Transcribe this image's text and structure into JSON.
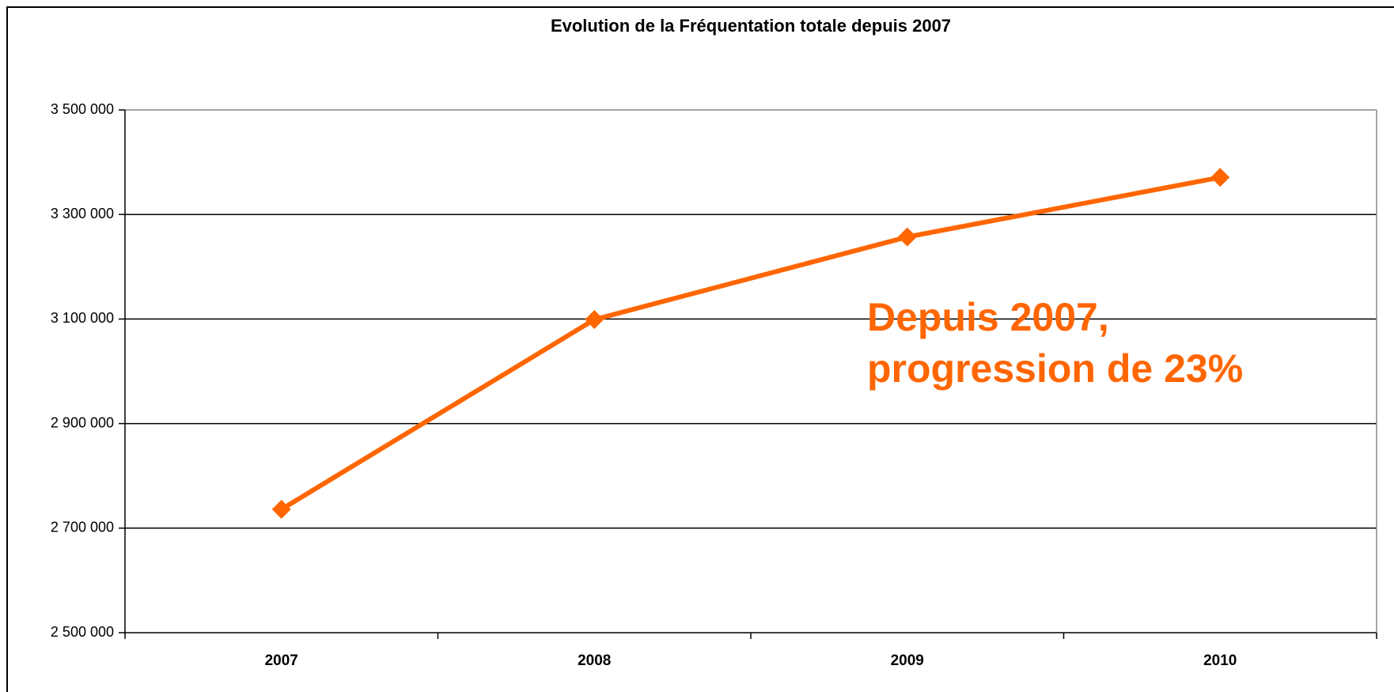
{
  "chart_data": {
    "type": "line",
    "title": "Evolution de la Fréquentation totale depuis 2007",
    "categories": [
      "2007",
      "2008",
      "2009",
      "2010"
    ],
    "series": [
      {
        "name": "Fréquentation totale",
        "color": "#ff6600",
        "values": [
          2736000,
          3099000,
          3257000,
          3371000
        ]
      }
    ],
    "ylim": [
      2500000,
      3500000
    ],
    "yticks": [
      {
        "value": 2500000,
        "label": "2 500 000"
      },
      {
        "value": 2700000,
        "label": "2 700 000"
      },
      {
        "value": 2900000,
        "label": "2 900 000"
      },
      {
        "value": 3100000,
        "label": "3 100 000"
      },
      {
        "value": 3300000,
        "label": "3 300 000"
      },
      {
        "value": 3500000,
        "label": "3 500 000"
      }
    ],
    "grid": true,
    "annotation": [
      "Depuis 2007,",
      "progression de 23%"
    ]
  }
}
